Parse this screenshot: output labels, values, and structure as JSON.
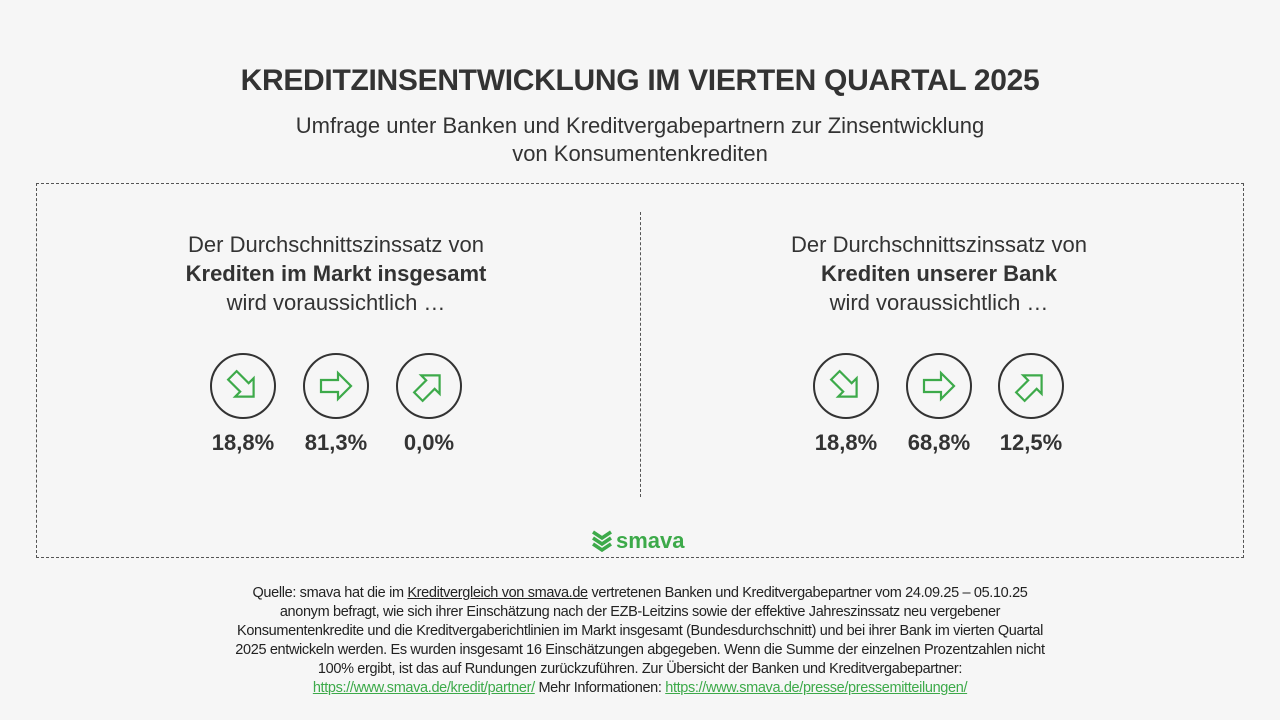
{
  "title": "KREDITZINSENTWICKLUNG IM VIERTEN QUARTAL 2025",
  "subtitle": {
    "line1": "Umfrage unter Banken und Kreditvergabepartnern zur Zinsentwicklung",
    "line2": "von Konsumentenkrediten"
  },
  "left": {
    "line1": "Der Durchschnittszinssatz von",
    "line2": "Krediten im Markt insgesamt",
    "line3": "wird voraussichtlich …",
    "down": "18,8%",
    "flat": "81,3%",
    "up": "0,0%"
  },
  "right": {
    "line1": "Der Durchschnittszinssatz von",
    "line2": "Krediten unserer Bank",
    "line3": "wird voraussichtlich …",
    "down": "18,8%",
    "flat": "68,8%",
    "up": "12,5%"
  },
  "logo": "smava",
  "colors": {
    "accent": "#3daa4a"
  },
  "footer": {
    "l1a": "Quelle: smava hat die im ",
    "l1link": "Kreditvergleich von smava.de",
    "l1b": " vertretenen Banken und Kreditvergabepartner vom 24.09.25 – 05.10.25",
    "l2": "anonym befragt, wie sich ihrer Einschätzung nach der EZB-Leitzins sowie der effektive Jahreszinssatz neu vergebener",
    "l3": "Konsumentenkredite und die Kreditvergaberichtlinien im Markt insgesamt (Bundesdurchschnitt) und bei ihrer Bank im vierten Quartal",
    "l4": "2025 entwickeln werden. Es wurden insgesamt 16 Einschätzungen abgegeben. Wenn die Summe der einzelnen Prozentzahlen nicht",
    "l5": "100% ergibt, ist das auf Rundungen zurückzuführen. Zur Übersicht der Banken und Kreditvergabepartner:",
    "link1": "https://www.smava.de/kredit/partner/",
    "mid": " Mehr Informationen: ",
    "link2": "https://www.smava.de/presse/pressemitteilungen/"
  }
}
